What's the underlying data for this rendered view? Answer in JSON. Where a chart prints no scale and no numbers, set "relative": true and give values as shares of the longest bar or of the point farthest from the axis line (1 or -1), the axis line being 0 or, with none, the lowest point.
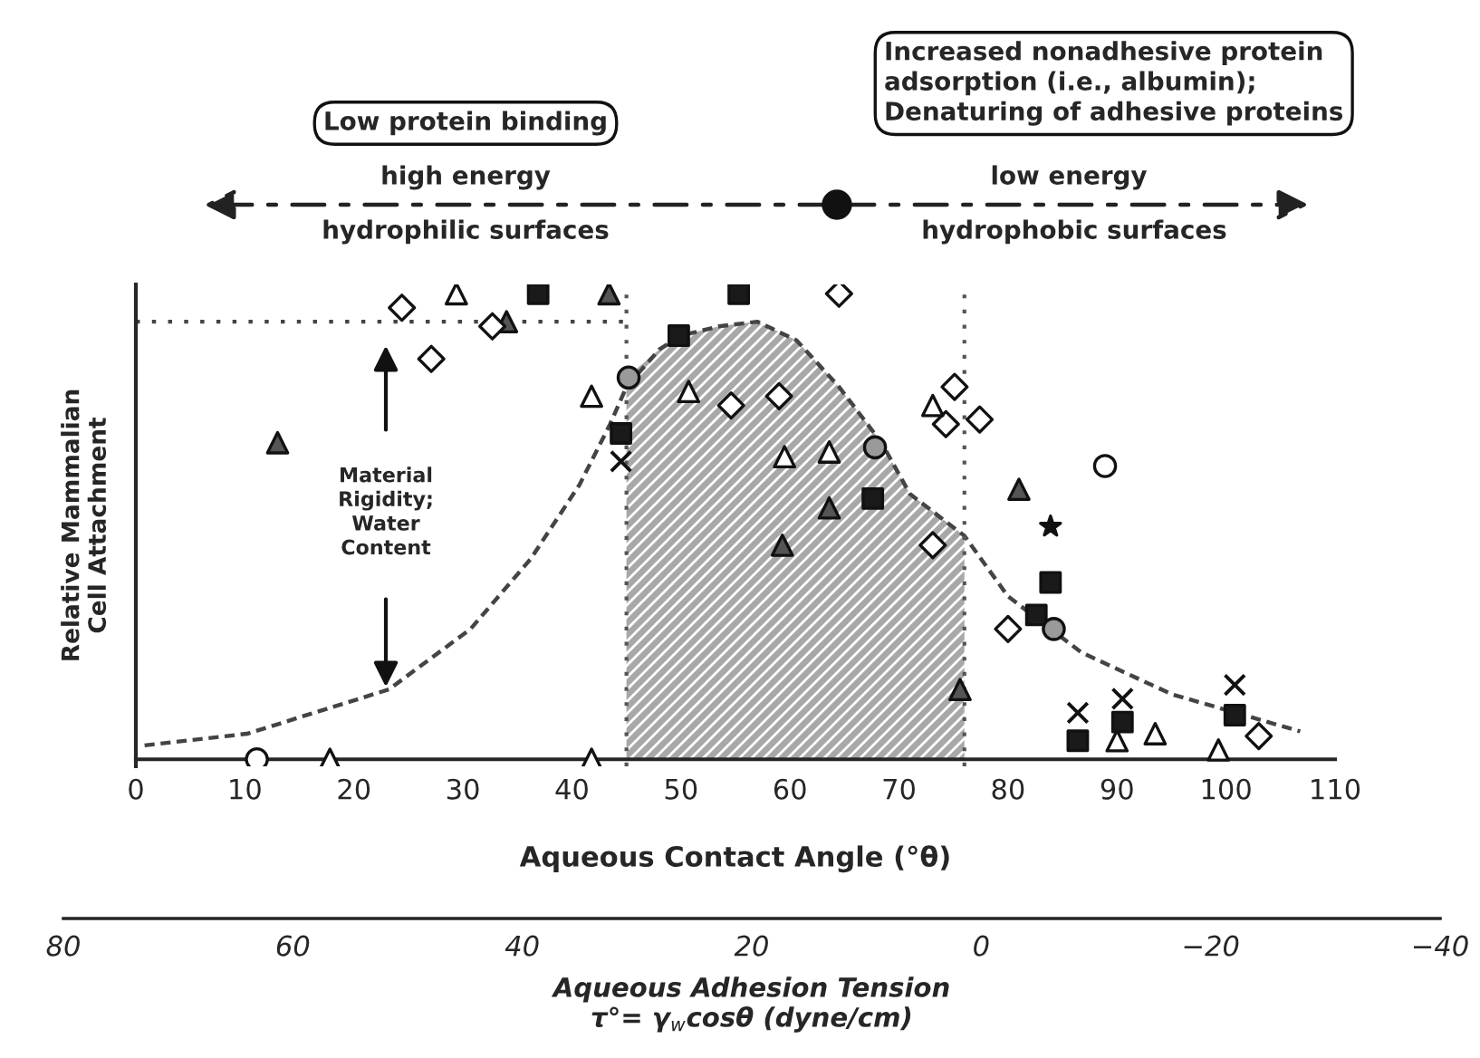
{
  "chart_data": {
    "type": "scatter",
    "xlabel": "Aqueous Contact Angle (°θ)",
    "ylabel": "Relative Mammalian\nCell Attachment",
    "x2label": "Aqueous Adhesion Tension\nτ°= γ$_{w}$cosθ (dyne/cm)",
    "relative": true,
    "tick_labels": "x",
    "grid": false,
    "legend": false,
    "xlim": [
      0,
      110
    ],
    "xticks": [
      0,
      10,
      20,
      30,
      40,
      50,
      60,
      70,
      80,
      90,
      100,
      110
    ],
    "x2lim": [
      80,
      -40
    ],
    "x2ticks": [
      80,
      60,
      40,
      20,
      0,
      {
        "value": -20,
        "label": "−20"
      },
      {
        "value": -40,
        "label": "−40"
      }
    ],
    "ref_lines": [
      {
        "axis": "x",
        "value": 45,
        "color": "#555555",
        "line_style": "dotted"
      },
      {
        "axis": "x",
        "value": 76,
        "color": "#555555",
        "line_style": "dotted"
      }
    ],
    "annotations": [
      "Low protein binding",
      "high energy",
      "hydrophilic surfaces",
      "low energy",
      "hydrophobic surfaces",
      "Increased nonadhesive protein\nadsorption (i.e., albumin);\nDenaturing of adhesive proteins",
      "Material\nRigidity;\nWater\nContent"
    ],
    "series": [
      {
        "type": "area",
        "color": "#a8a8a8",
        "x": [
          45,
          48,
          50,
          53.5,
          57,
          60.6,
          64.5,
          68.4,
          71,
          76
        ],
        "values": [
          0.82,
          0.88,
          0.91,
          0.93,
          0.94,
          0.9,
          0.8,
          0.68,
          0.57,
          0.48
        ]
      },
      {
        "type": "line",
        "color": "#444444",
        "line_style": "dashed",
        "marker": "none",
        "x": [
          0.8,
          10.2,
          23.2,
          30.7,
          36.2,
          40.7,
          43.5,
          45,
          48,
          50,
          53.5,
          57,
          60.6,
          64.5,
          68.4,
          71,
          76,
          80,
          86.7,
          95,
          106.8
        ],
        "values": [
          0.03,
          0.055,
          0.15,
          0.28,
          0.43,
          0.59,
          0.72,
          0.8,
          0.88,
          0.91,
          0.93,
          0.94,
          0.9,
          0.8,
          0.68,
          0.57,
          0.48,
          0.35,
          0.23,
          0.14,
          0.06
        ]
      },
      {
        "type": "line",
        "color": "#444444",
        "line_style": "dotted",
        "marker": "none",
        "x": [
          0,
          45
        ],
        "values": [
          0.94,
          0.94
        ]
      },
      {
        "marker": "diamond",
        "color": "#ffffff",
        "x": [
          24.4,
          27.1,
          32.7,
          64.5,
          54.6,
          59,
          75.1,
          74.3,
          77.4,
          73.1,
          80,
          103
        ],
        "values": [
          0.97,
          0.86,
          0.93,
          1,
          0.76,
          0.78,
          0.8,
          0.72,
          0.73,
          0.46,
          0.28,
          0.05
        ]
      },
      {
        "marker": "triangle",
        "color": "#ffffff",
        "x": [
          29.4,
          41.8,
          17.8,
          41.8,
          50.7,
          59.5,
          63.6,
          73.1,
          93.5,
          99.3,
          90
        ],
        "values": [
          1,
          0.78,
          0,
          0,
          0.79,
          0.65,
          0.66,
          0.76,
          0.055,
          0.02,
          0.04
        ]
      },
      {
        "marker": "triangle",
        "color": "#555555",
        "x": [
          13,
          43.4,
          34,
          59.3,
          63.6,
          81,
          75.6
        ],
        "values": [
          0.68,
          1,
          0.94,
          0.46,
          0.54,
          0.58,
          0.15
        ]
      },
      {
        "marker": "square",
        "color": "#1a1a1a",
        "x": [
          36.9,
          55.3,
          49.8,
          44.5,
          67.6,
          83.9,
          82.6,
          86.4,
          90.5,
          100.8
        ],
        "values": [
          1,
          1,
          0.91,
          0.7,
          0.56,
          0.38,
          0.31,
          0.04,
          0.08,
          0.095
        ]
      },
      {
        "marker": "circle",
        "color": "#9a9a9a",
        "x": [
          45.2,
          67.8,
          84.2
        ],
        "values": [
          0.82,
          0.67,
          0.28
        ]
      },
      {
        "marker": "circle",
        "color": "#ffffff",
        "x": [
          11.1,
          88.9
        ],
        "values": [
          0,
          0.63
        ]
      },
      {
        "marker": "cross",
        "color": "#111111",
        "x": [
          86.4,
          90.5,
          100.8,
          44.5
        ],
        "values": [
          0.1,
          0.13,
          0.16,
          0.64
        ]
      },
      {
        "marker": "star",
        "color": "#111111",
        "x": [
          83.9
        ],
        "values": [
          0.5
        ]
      }
    ]
  }
}
